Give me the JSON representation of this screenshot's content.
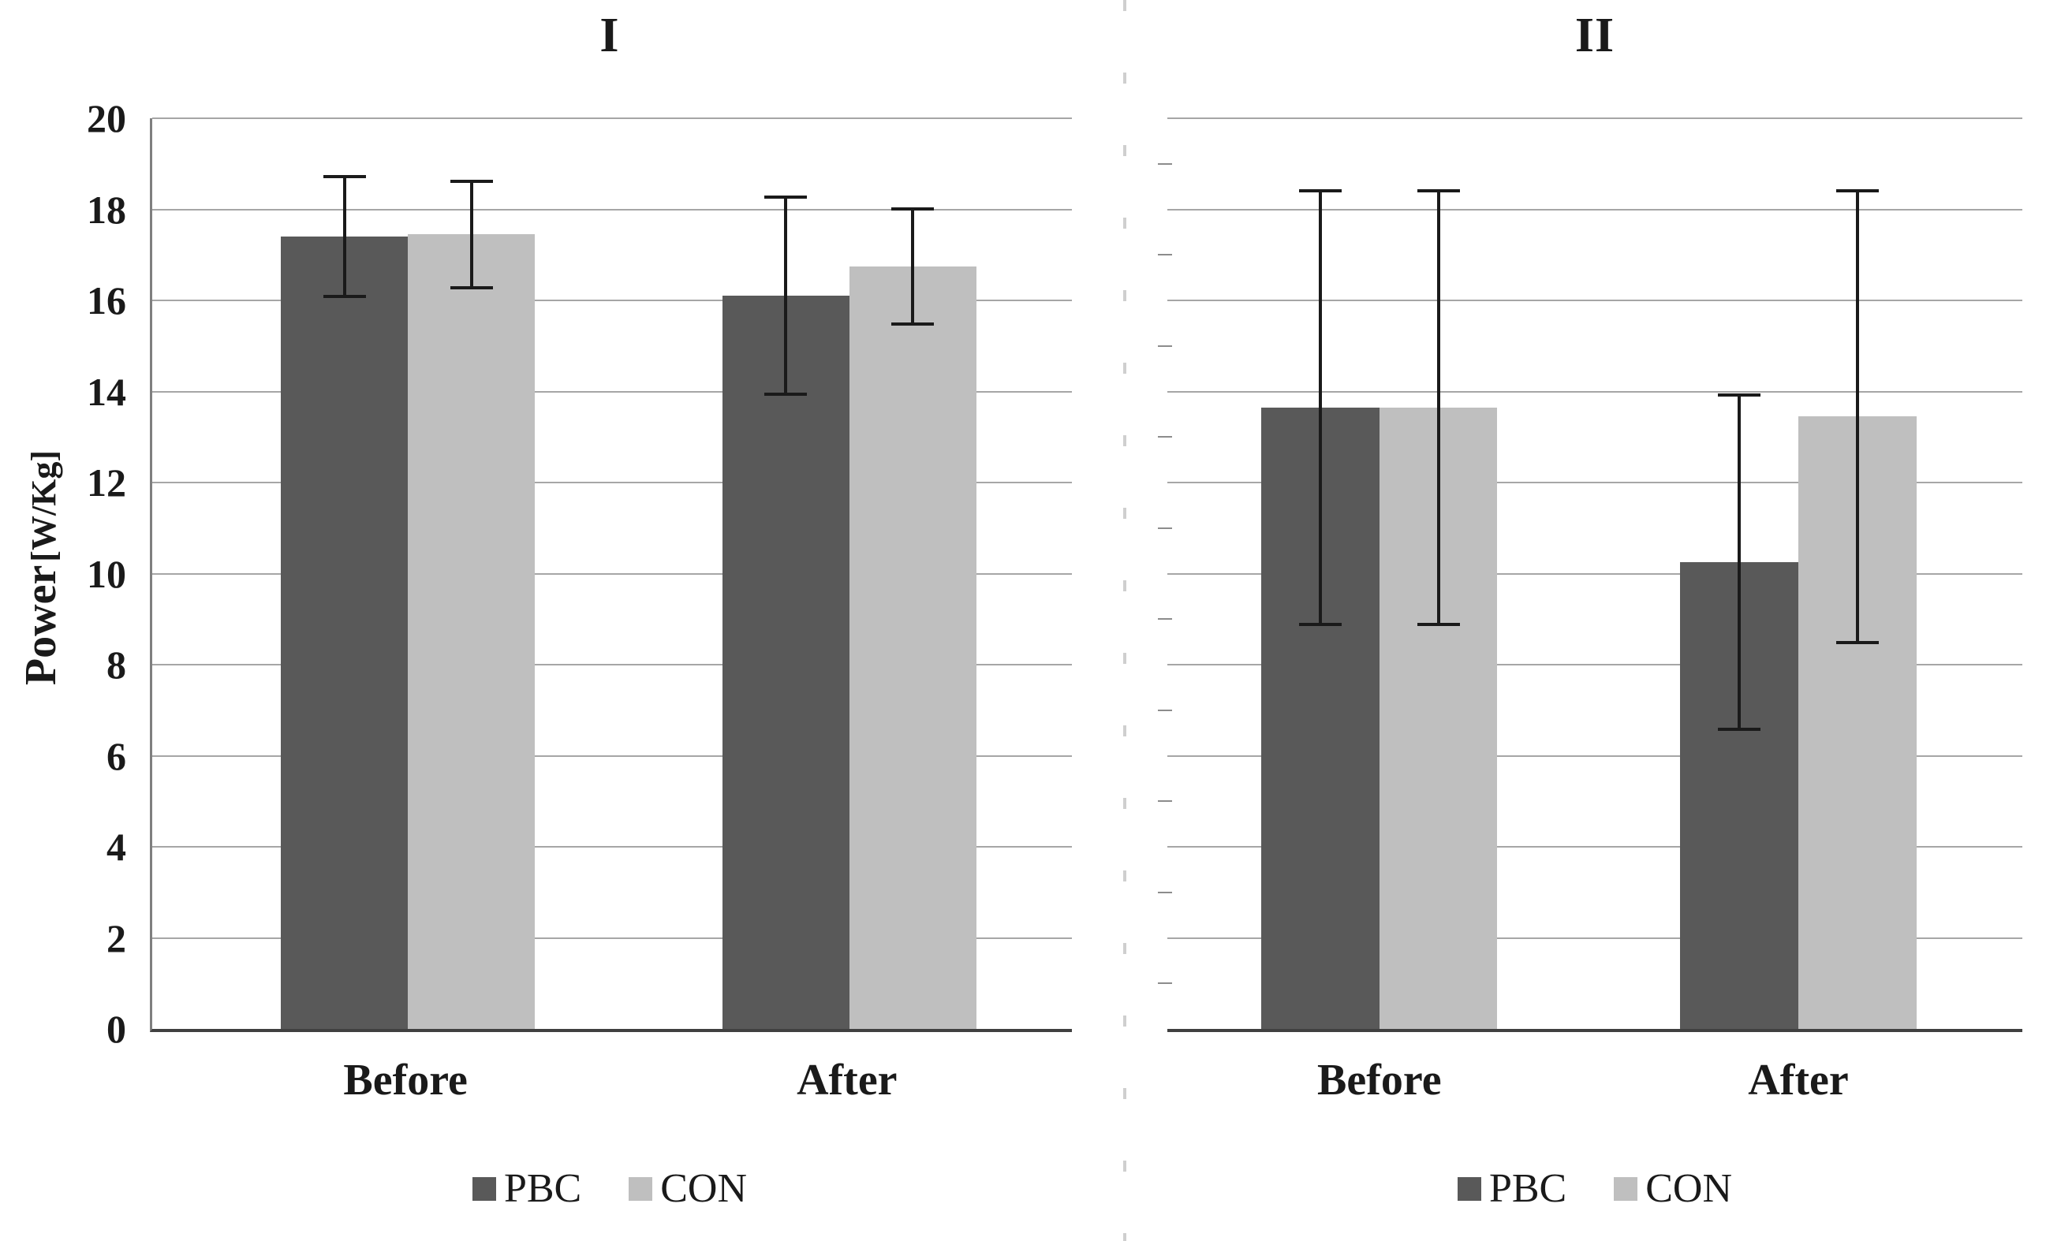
{
  "figure": {
    "ylabel_main": "Power",
    "ylabel_unit": "[W/Kg]"
  },
  "chart_data": [
    {
      "type": "bar",
      "panel_title": "I",
      "categories": [
        "Before",
        "After"
      ],
      "series": [
        {
          "name": "PBC",
          "color": "#595959",
          "values": [
            17.4,
            16.1
          ],
          "errors": [
            1.35,
            2.2
          ]
        },
        {
          "name": "CON",
          "color": "#bfbfbf",
          "values": [
            17.45,
            16.75
          ],
          "errors": [
            1.2,
            1.3
          ]
        }
      ],
      "ylabel": "Power [W/Kg]",
      "ylim": [
        0,
        20
      ],
      "yticks": [
        0,
        2,
        4,
        6,
        8,
        10,
        12,
        14,
        16,
        18,
        20
      ],
      "grid": true,
      "error_bars": true,
      "legend_position": "bottom"
    },
    {
      "type": "bar",
      "panel_title": "II",
      "categories": [
        "Before",
        "After"
      ],
      "series": [
        {
          "name": "PBC",
          "color": "#595959",
          "values": [
            13.65,
            10.25
          ],
          "errors": [
            4.8,
            3.7
          ]
        },
        {
          "name": "CON",
          "color": "#bfbfbf",
          "values": [
            13.65,
            13.45
          ],
          "errors": [
            4.8,
            5.0
          ]
        }
      ],
      "ylabel": "",
      "ylim": [
        0,
        20
      ],
      "yticks": [
        0,
        2,
        4,
        6,
        8,
        10,
        12,
        14,
        16,
        18,
        20
      ],
      "grid": true,
      "error_bars": true,
      "legend_position": "bottom"
    }
  ]
}
